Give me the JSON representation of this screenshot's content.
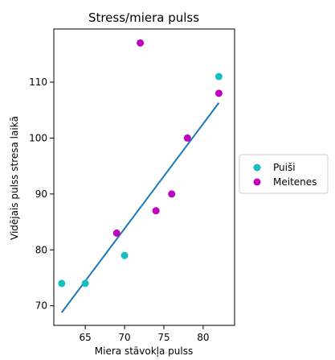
{
  "chart_data": {
    "type": "scatter",
    "title": "Stress/miera pulss",
    "xlabel": "Miera stāvokļa pulss",
    "ylabel": "Vidējais pulss stresa laikā",
    "xlim": [
      61,
      84
    ],
    "ylim": [
      66.5,
      119.5
    ],
    "x_ticks": [
      65,
      70,
      75,
      80
    ],
    "y_ticks": [
      70,
      80,
      90,
      100,
      110
    ],
    "grid": false,
    "legend_position": "right",
    "series": [
      {
        "name": "Puiši",
        "color": "#17bfbf",
        "points": [
          [
            62,
            74
          ],
          [
            65,
            74
          ],
          [
            70,
            79
          ],
          [
            82,
            111
          ]
        ]
      },
      {
        "name": "Meitenes",
        "color": "#bf00bf",
        "points": [
          [
            69,
            83
          ],
          [
            72,
            117
          ],
          [
            74,
            87
          ],
          [
            76,
            90
          ],
          [
            78,
            100
          ],
          [
            82,
            108
          ]
        ]
      }
    ],
    "trend_line": {
      "color": "#1f77b4",
      "points": [
        [
          62,
          68.8
        ],
        [
          82,
          106.3
        ]
      ]
    }
  }
}
